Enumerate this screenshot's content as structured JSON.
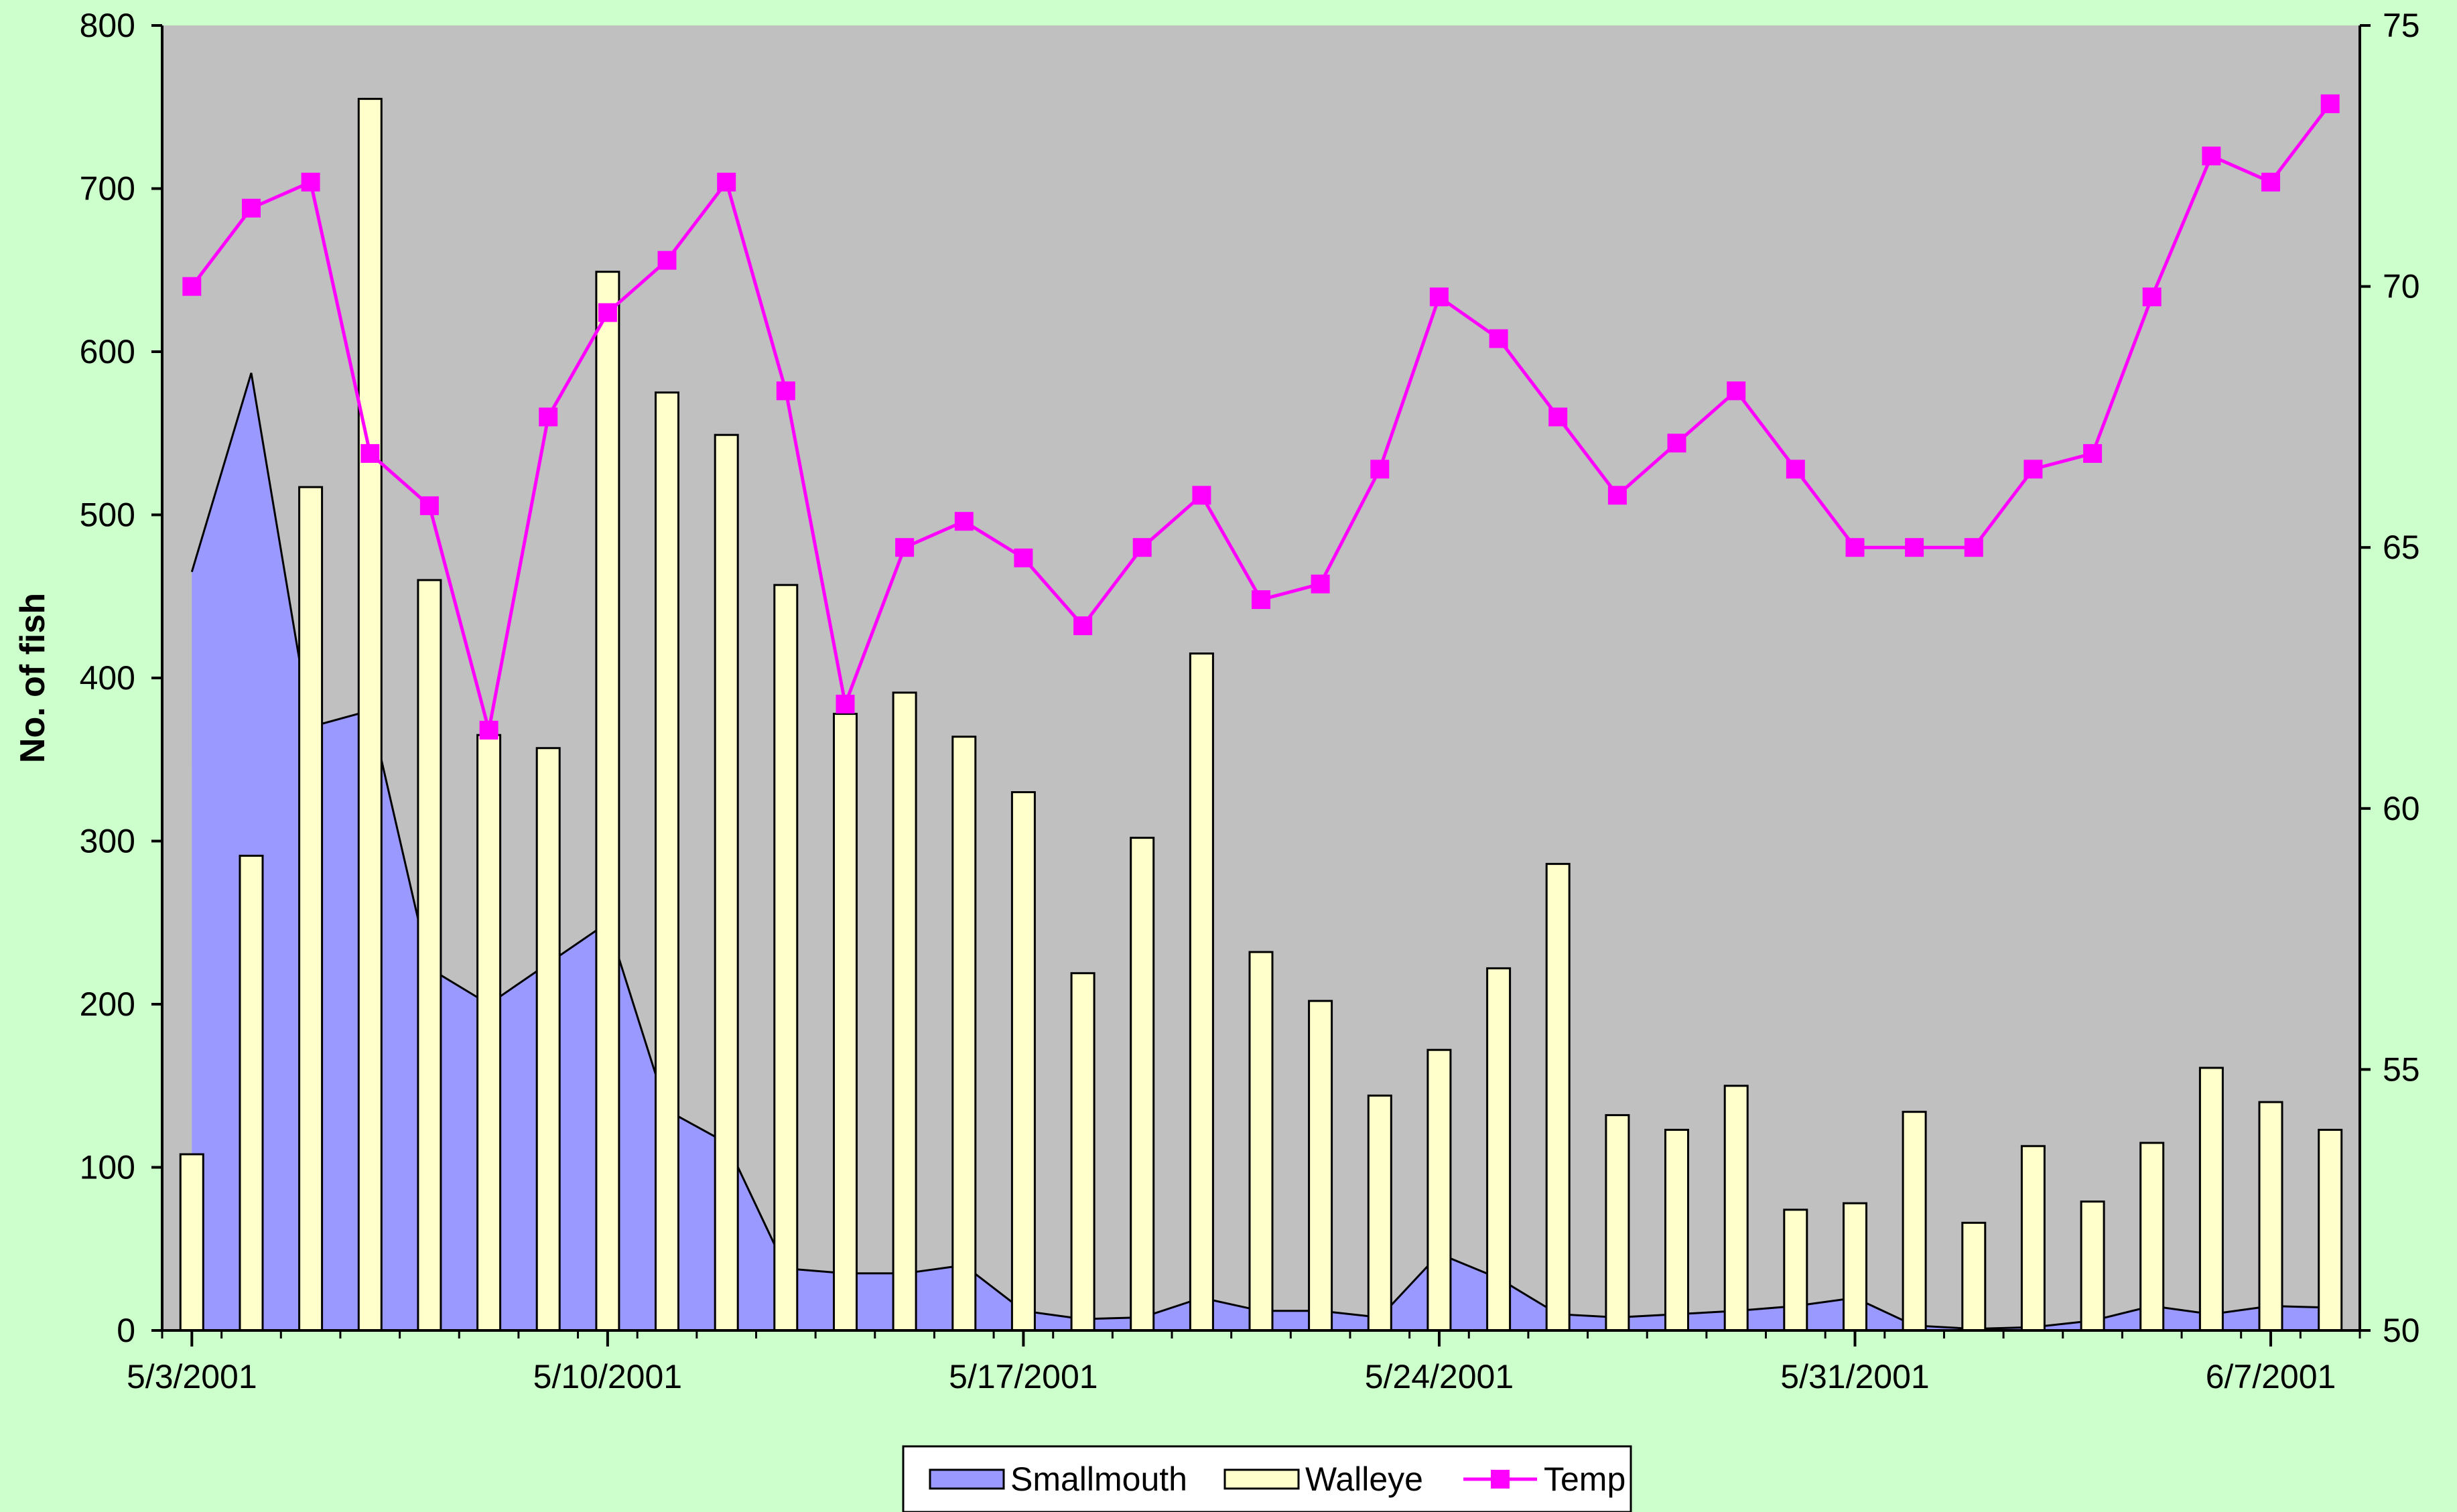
{
  "chart_data": {
    "type": "bar",
    "title": "",
    "ylabel": "No. of fish",
    "y2label": "",
    "ylim": [
      0,
      800
    ],
    "y2lim": [
      50,
      75
    ],
    "yticks": [
      0,
      100,
      200,
      300,
      400,
      500,
      600,
      700,
      800
    ],
    "y2ticks": [
      50,
      55,
      60,
      65,
      70,
      75
    ],
    "grid": false,
    "legend_position": "bottom-center",
    "plot_background": "#c0c0c0",
    "x": [
      "5/3/2001",
      "5/4/2001",
      "5/5/2001",
      "5/6/2001",
      "5/7/2001",
      "5/8/2001",
      "5/9/2001",
      "5/10/2001",
      "5/11/2001",
      "5/12/2001",
      "5/13/2001",
      "5/14/2001",
      "5/15/2001",
      "5/16/2001",
      "5/17/2001",
      "5/18/2001",
      "5/19/2001",
      "5/20/2001",
      "5/21/2001",
      "5/22/2001",
      "5/23/2001",
      "5/24/2001",
      "5/25/2001",
      "5/26/2001",
      "5/27/2001",
      "5/28/2001",
      "5/29/2001",
      "5/30/2001",
      "5/31/2001",
      "6/1/2001",
      "6/2/2001",
      "6/3/2001",
      "6/4/2001",
      "6/5/2001",
      "6/6/2001",
      "6/7/2001",
      "6/8/2001"
    ],
    "xtick_labels": [
      {
        "index": 0,
        "label": "5/3/2001"
      },
      {
        "index": 7,
        "label": "5/10/2001"
      },
      {
        "index": 14,
        "label": "5/17/2001"
      },
      {
        "index": 21,
        "label": "5/24/2001"
      },
      {
        "index": 28,
        "label": "5/31/2001"
      },
      {
        "index": 35,
        "label": "6/7/2001"
      }
    ],
    "series": [
      {
        "name": "Smallmouth",
        "kind": "area",
        "axis": "left",
        "color": "#9999ff",
        "values": [
          465,
          587,
          370,
          380,
          222,
          200,
          225,
          250,
          135,
          115,
          38,
          35,
          35,
          40,
          12,
          7,
          8,
          20,
          12,
          12,
          8,
          47,
          32,
          10,
          8,
          10,
          12,
          15,
          20,
          3,
          1,
          2,
          6,
          15,
          10,
          15,
          14
        ]
      },
      {
        "name": "Walleye",
        "kind": "bar",
        "axis": "left",
        "color": "#ffffcc",
        "values": [
          108,
          291,
          517,
          755,
          460,
          365,
          357,
          649,
          575,
          549,
          457,
          378,
          391,
          364,
          330,
          219,
          302,
          415,
          232,
          202,
          144,
          172,
          222,
          286,
          132,
          123,
          150,
          74,
          78,
          134,
          66,
          113,
          79,
          115,
          161,
          140,
          123
        ]
      },
      {
        "name": "Temp",
        "kind": "line",
        "axis": "right",
        "color": "#ff00ff",
        "values": [
          70,
          71.5,
          72,
          66.8,
          65.8,
          61.5,
          67.5,
          69.5,
          70.5,
          72,
          68,
          62,
          65,
          65.5,
          64.8,
          63.5,
          65,
          66,
          64,
          64.3,
          66.5,
          69.8,
          69,
          67.5,
          66,
          67,
          68,
          66.5,
          65,
          65,
          65,
          66.5,
          66.8,
          69.8,
          72.5,
          72,
          73.5
        ]
      }
    ]
  }
}
